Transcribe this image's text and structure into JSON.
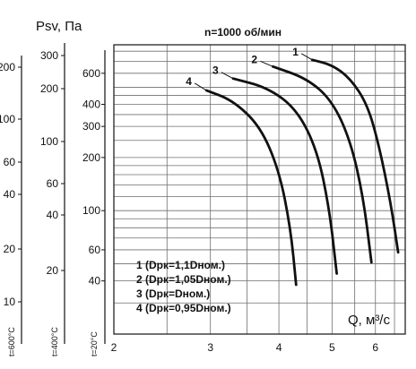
{
  "chart_data": {
    "type": "line",
    "title": "n=1000 об/мин",
    "ylabel": "Psv, Па",
    "xlabel": "Q, м³/с",
    "x_axis": {
      "scale": "log",
      "range": [
        2,
        6.8
      ],
      "ticks": [
        "2",
        "3",
        "4",
        "5",
        "6"
      ]
    },
    "y_axes": [
      {
        "name": "t=600°C",
        "scale": "log",
        "ticks": [
          "200",
          "100",
          "60",
          "40",
          "20",
          "10"
        ]
      },
      {
        "name": "t=400°C",
        "scale": "log",
        "ticks": [
          "300",
          "200",
          "100",
          "60",
          "40",
          "20"
        ]
      },
      {
        "name": "t=20°C",
        "scale": "log",
        "range": [
          20,
          870
        ],
        "ticks": [
          "600",
          "400",
          "300",
          "200",
          "100",
          "60",
          "40"
        ]
      }
    ],
    "series": [
      {
        "label": "1",
        "name": "1 (Dpк=1,1Dном.)",
        "x": [
          4.6,
          5.0,
          5.4,
          5.8,
          6.1,
          6.4,
          6.6
        ],
        "y": [
          715,
          670,
          560,
          400,
          230,
          110,
          58
        ]
      },
      {
        "label": "2",
        "name": "2 (Dpк=1,05Dном.)",
        "x": [
          3.9,
          4.5,
          5.0,
          5.4,
          5.7,
          5.9
        ],
        "y": [
          655,
          560,
          420,
          250,
          120,
          51
        ]
      },
      {
        "label": "3",
        "name": "3 (Dpк=Dном.)",
        "x": [
          3.3,
          3.8,
          4.3,
          4.7,
          4.95,
          5.1
        ],
        "y": [
          560,
          500,
          380,
          220,
          100,
          44
        ]
      },
      {
        "label": "4",
        "name": "4 (Dpк=0,95Dном.)",
        "x": [
          2.95,
          3.3,
          3.7,
          4.0,
          4.2,
          4.3
        ],
        "y": [
          480,
          420,
          300,
          170,
          80,
          38
        ]
      }
    ]
  }
}
